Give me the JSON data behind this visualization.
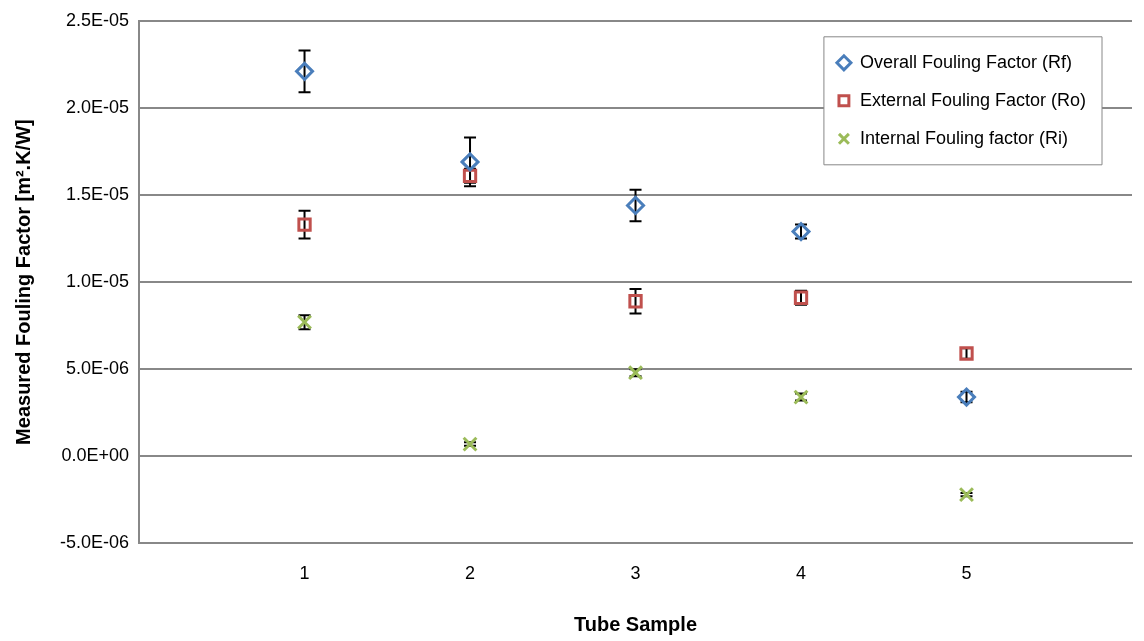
{
  "chart_data": {
    "type": "scatter",
    "xlabel": "Tube Sample",
    "ylabel": "Measured Fouling Factor [m².K/W]",
    "x": [
      1,
      2,
      3,
      4,
      5
    ],
    "xlim": [
      0,
      6
    ],
    "xticks": [
      1,
      2,
      3,
      4,
      5
    ],
    "ylim": [
      -5e-06,
      2.5e-05
    ],
    "yticks": [
      {
        "value": -5e-06,
        "label": "-5.0E-06"
      },
      {
        "value": 0,
        "label": "0.0E+00"
      },
      {
        "value": 5e-06,
        "label": "5.0E-06"
      },
      {
        "value": 1e-05,
        "label": "1.0E-05"
      },
      {
        "value": 1.5e-05,
        "label": "1.5E-05"
      },
      {
        "value": 2e-05,
        "label": "2.0E-05"
      },
      {
        "value": 2.5e-05,
        "label": "2.5E-05"
      }
    ],
    "grid": "y",
    "legend": "top right",
    "series": [
      {
        "name": "Overall Fouling Factor (Rf)",
        "color": "#4a7ebb",
        "marker": "diamond",
        "values": [
          2.21e-05,
          1.69e-05,
          1.44e-05,
          1.29e-05,
          3.4e-06
        ],
        "errors": [
          1.2e-06,
          1.4e-06,
          9e-07,
          4e-07,
          3e-07
        ]
      },
      {
        "name": "External Fouling Factor (Ro)",
        "color": "#c0504d",
        "marker": "square",
        "values": [
          1.33e-05,
          1.61e-05,
          8.9e-06,
          9.1e-06,
          5.9e-06
        ],
        "errors": [
          8e-07,
          4e-07,
          7e-07,
          4e-07,
          3e-07
        ]
      },
      {
        "name": "Internal Fouling factor (Ri)",
        "color": "#9bbb59",
        "marker": "cross",
        "values": [
          7.7e-06,
          7e-07,
          4.8e-06,
          3.4e-06,
          -2.2e-06
        ],
        "errors": [
          4e-07,
          1e-07,
          2e-07,
          2e-07,
          1e-07
        ]
      }
    ]
  }
}
